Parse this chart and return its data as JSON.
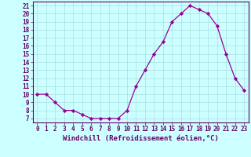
{
  "x": [
    0,
    1,
    2,
    3,
    4,
    5,
    6,
    7,
    8,
    9,
    10,
    11,
    12,
    13,
    14,
    15,
    16,
    17,
    18,
    19,
    20,
    21,
    22,
    23
  ],
  "y": [
    10,
    10,
    9,
    8,
    8,
    7.5,
    7,
    7,
    7,
    7,
    8,
    11,
    13,
    15,
    16.5,
    19,
    20,
    21,
    20.5,
    20,
    18.5,
    15,
    12,
    10.5
  ],
  "line_color": "#990099",
  "marker": "D",
  "marker_size": 2.2,
  "bg_color": "#ccffff",
  "grid_color": "#aadddd",
  "xlabel": "Windchill (Refroidissement éolien,°C)",
  "xlabel_fontsize": 6.5,
  "ylabel_ticks": [
    7,
    8,
    9,
    10,
    11,
    12,
    13,
    14,
    15,
    16,
    17,
    18,
    19,
    20,
    21
  ],
  "xlim": [
    -0.5,
    23.5
  ],
  "ylim": [
    6.5,
    21.5
  ],
  "tick_fontsize": 5.5,
  "label_color": "#660066"
}
